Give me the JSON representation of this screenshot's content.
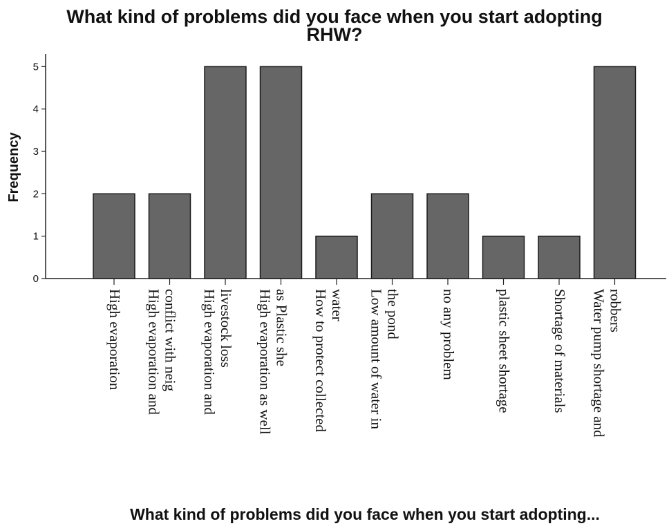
{
  "chart_data": {
    "type": "bar",
    "title_lines": [
      "What kind of problems did you face when you start adopting",
      "RHW?"
    ],
    "ylabel": "Frequency",
    "xlabel": "What kind of problems did you face when you start adopting...",
    "ylim": [
      0,
      5.3
    ],
    "yticks": [
      0,
      1,
      2,
      3,
      4,
      5
    ],
    "grid": false,
    "bar_color": "#666666",
    "categories": [
      [
        "High evaporation"
      ],
      [
        "High evaporation and",
        "conflict with neig"
      ],
      [
        "High evaporation and",
        "livestock loss"
      ],
      [
        "High evaporation as well",
        "as Plastic she"
      ],
      [
        "How to protect collected",
        "water"
      ],
      [
        "Low amount of water in",
        "the pond"
      ],
      [
        "no any problem"
      ],
      [
        "plastic sheet shortage"
      ],
      [
        "Shortage of materials"
      ],
      [
        "Water pump shortage and",
        "robbers"
      ]
    ],
    "values": [
      2,
      2,
      5,
      5,
      1,
      2,
      2,
      1,
      1,
      5
    ]
  }
}
